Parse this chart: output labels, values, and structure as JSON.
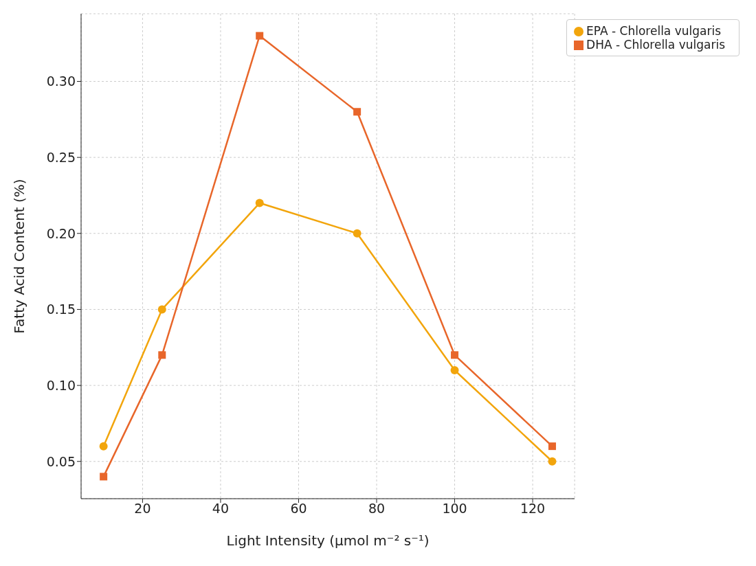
{
  "chart_data": {
    "type": "line",
    "xlabel": "Light Intensity (µmol m⁻² s⁻¹)",
    "ylabel": "Fatty Acid Content (%)",
    "x": [
      10,
      25,
      50,
      75,
      100,
      125
    ],
    "series": [
      {
        "name": "EPA - Chlorella vulgaris",
        "color": "#f2a50c",
        "marker": "circle",
        "values": [
          0.06,
          0.15,
          0.22,
          0.2,
          0.11,
          0.05
        ]
      },
      {
        "name": "DHA - Chlorella vulgaris",
        "color": "#e8662a",
        "marker": "square",
        "values": [
          0.04,
          0.12,
          0.33,
          0.28,
          0.12,
          0.06
        ]
      }
    ],
    "xlim": [
      4.25,
      130.75
    ],
    "xticks": [
      20,
      40,
      60,
      80,
      100,
      120
    ],
    "ylim": [
      0.0255,
      0.3445
    ],
    "yticks": [
      0.05,
      {
        "value": 0.1,
        "label": "0.10"
      },
      0.15,
      {
        "value": 0.2,
        "label": "0.20"
      },
      0.25,
      {
        "value": 0.3,
        "label": "0.30"
      }
    ],
    "grid": true,
    "legend": "top right",
    "line_style": "solid"
  }
}
